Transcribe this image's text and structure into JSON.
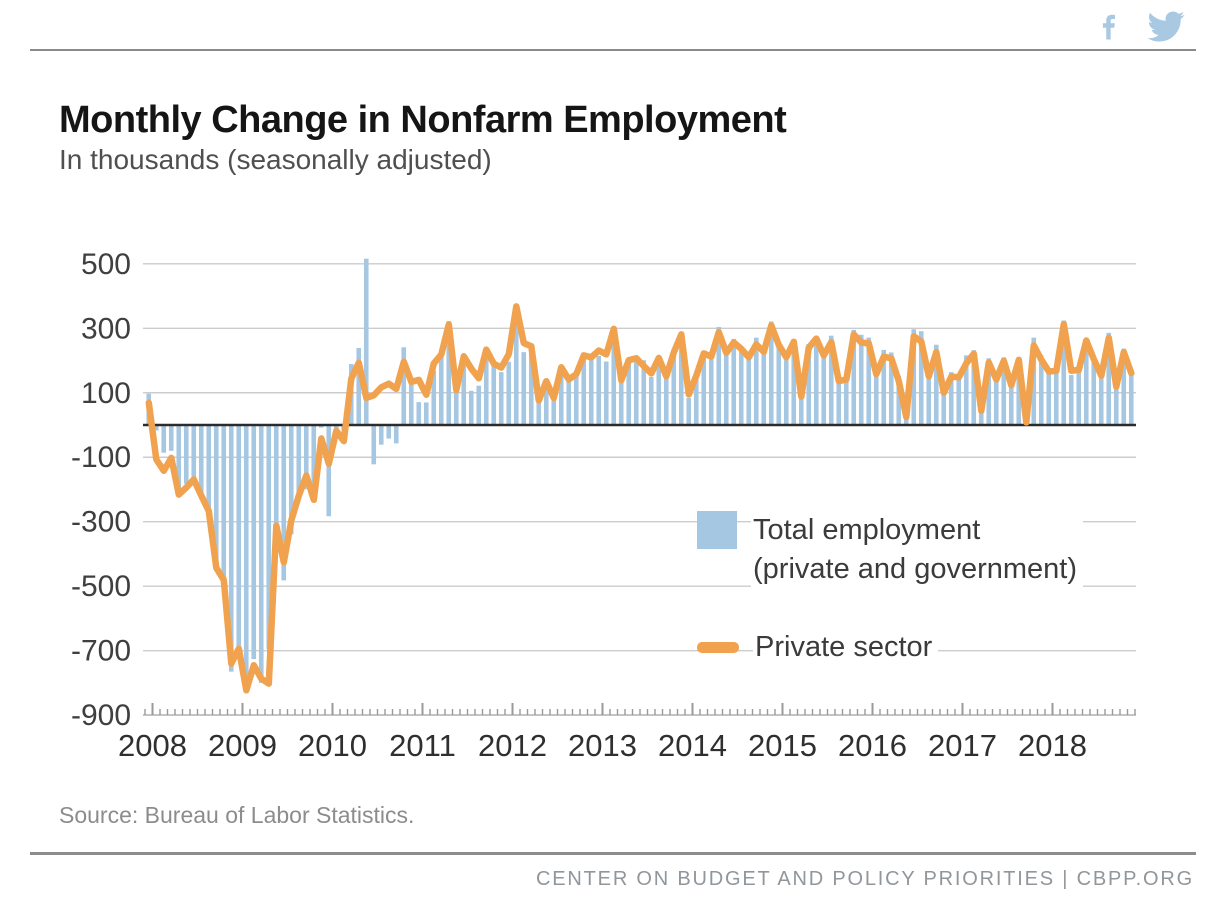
{
  "page": {
    "title": "Monthly Change in Nonfarm Employment",
    "subtitle": "In thousands (seasonally adjusted)",
    "source": "Source: Bureau of Labor Statistics.",
    "footer": "CENTER ON BUDGET AND POLICY PRIORITIES | CBPP.ORG"
  },
  "social": {
    "icons": [
      "facebook-icon",
      "twitter-icon"
    ],
    "color": "#a9c8e2"
  },
  "legend": {
    "total_label_line1": "Total employment",
    "total_label_line2": "(private and government)",
    "private_label": "Private sector"
  },
  "colors": {
    "bar": "#a6c7e2",
    "line": "#f0a24f",
    "zero_line": "#2b2b2b",
    "grid": "#cccccc",
    "axis": "#b0b0b0",
    "tick": "#9a9a9a",
    "axis_text": "#3f3f3f"
  },
  "chart_data": {
    "type": "bar",
    "subtype": "bar + line combo, monthly time series",
    "title": "Monthly Change in Nonfarm Employment",
    "units_note": "In thousands (seasonally adjusted)",
    "x_start": "2007-12",
    "x_end": "2018-11",
    "frequency": "monthly",
    "x_tick_labels": [
      "2008",
      "2009",
      "2010",
      "2011",
      "2012",
      "2013",
      "2014",
      "2015",
      "2016",
      "2017",
      "2018"
    ],
    "y_ticks": [
      500,
      300,
      100,
      -100,
      -300,
      -500,
      -700,
      -900
    ],
    "ylim": [
      -900,
      540
    ],
    "baseline": 0,
    "grid": "horizontal",
    "legend_position": "inside lower right",
    "series": [
      {
        "name": "Total employment (private and government)",
        "type": "bar",
        "color": "#a6c7e2",
        "values": [
          97,
          -17,
          -86,
          -80,
          -214,
          -182,
          -172,
          -210,
          -259,
          -452,
          -474,
          -765,
          -697,
          -783,
          -726,
          -800,
          -695,
          -361,
          -482,
          -339,
          -231,
          -199,
          -202,
          -8,
          -283,
          -40,
          -35,
          189,
          239,
          516,
          -122,
          -61,
          -42,
          -57,
          241,
          137,
          71,
          70,
          168,
          212,
          322,
          102,
          217,
          106,
          122,
          221,
          183,
          164,
          196,
          360,
          226,
          243,
          96,
          110,
          88,
          160,
          150,
          161,
          225,
          203,
          214,
          197,
          280,
          141,
          203,
          199,
          201,
          149,
          202,
          164,
          237,
          274,
          84,
          144,
          222,
          203,
          304,
          229,
          267,
          243,
          203,
          271,
          243,
          321,
          256,
          201,
          266,
          84,
          251,
          273,
          228,
          277,
          150,
          149,
          295,
          280,
          271,
          168,
          233,
          225,
          153,
          43,
          297,
          291,
          176,
          249,
          124,
          164,
          155,
          216,
          232,
          50,
          207,
          145,
          210,
          139,
          208,
          14,
          271,
          216,
          175,
          176,
          324,
          155,
          175,
          268,
          208,
          165,
          286,
          119,
          237,
          155
        ]
      },
      {
        "name": "Private sector",
        "type": "line",
        "color": "#f0a24f",
        "values": [
          69,
          -107,
          -142,
          -102,
          -216,
          -194,
          -169,
          -219,
          -267,
          -443,
          -481,
          -740,
          -694,
          -823,
          -745,
          -787,
          -802,
          -312,
          -426,
          -296,
          -219,
          -157,
          -232,
          -42,
          -120,
          -18,
          -50,
          144,
          193,
          84,
          92,
          117,
          128,
          112,
          196,
          134,
          140,
          94,
          191,
          219,
          312,
          109,
          213,
          175,
          145,
          234,
          190,
          178,
          220,
          368,
          254,
          244,
          76,
          136,
          84,
          179,
          141,
          158,
          216,
          210,
          231,
          219,
          298,
          139,
          201,
          207,
          183,
          160,
          208,
          151,
          225,
          281,
          95,
          153,
          222,
          212,
          288,
          224,
          256,
          236,
          210,
          250,
          227,
          309,
          248,
          210,
          258,
          88,
          240,
          268,
          216,
          257,
          136,
          141,
          281,
          256,
          253,
          158,
          212,
          207,
          136,
          25,
          275,
          259,
          151,
          226,
          100,
          150,
          148,
          191,
          221,
          44,
          194,
          141,
          199,
          123,
          202,
          8,
          247,
          203,
          166,
          168,
          313,
          168,
          171,
          262,
          204,
          153,
          270,
          119,
          226,
          161
        ]
      }
    ]
  }
}
